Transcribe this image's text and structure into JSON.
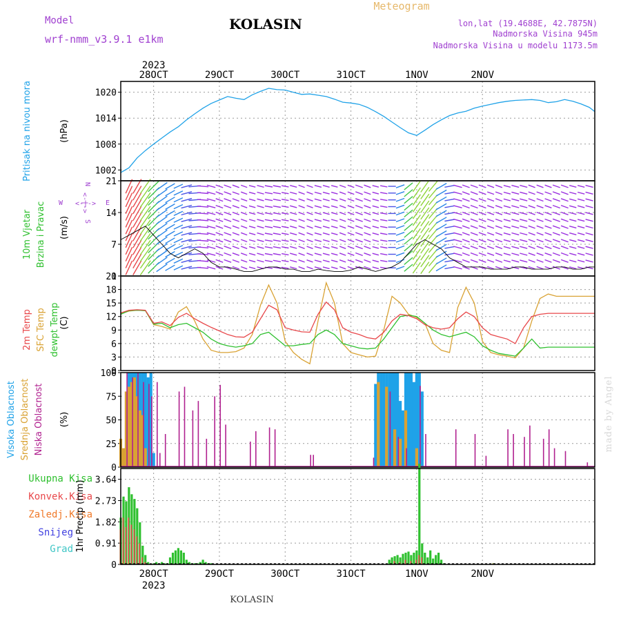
{
  "header": {
    "model_label": "Model",
    "model_name": "wrf-nmm_v3.9.1 e1km",
    "station": "KOLASIN",
    "product": "Meteogram",
    "lonlat": "lon,lat (19.4688E, 42.7875N)",
    "elevation": "Nadmorska Visina 945m",
    "model_elevation": "Nadmorska Visina u modelu 1173.5m"
  },
  "footer": {
    "station": "KOLASIN",
    "credit": "made by Angel"
  },
  "colors": {
    "pressure": "#1fa2e8",
    "temp2m": "#e8474a",
    "sfc": "#d9a233",
    "dew": "#2fc02f",
    "high_cloud": "#1fa2e8",
    "mid_cloud": "#d9a233",
    "low_cloud": "#b0208f",
    "total_precip": "#2fc02f",
    "conv": "#e8474a",
    "frz": "#f07a2a",
    "snow": "#4040e0",
    "hail": "#3fc6c6",
    "wind_labels": "#2fc02f",
    "purple": "#a040d0"
  },
  "chart_data": [
    {
      "type": "line",
      "panel": "pressure",
      "ylabel_colored": "Pritisak na nivou mora",
      "unit": "(hPa)",
      "yticks": [
        1002,
        1008,
        1014,
        1020
      ],
      "ylim": [
        999.5,
        1022.5
      ],
      "x_unit": "hours since 28OCT 00UTC",
      "x": [
        -12,
        -9,
        -6,
        -3,
        0,
        3,
        6,
        9,
        12,
        15,
        18,
        21,
        24,
        27,
        30,
        33,
        36,
        39,
        42,
        45,
        48,
        51,
        54,
        57,
        60,
        63,
        66,
        69,
        72,
        75,
        78,
        81,
        84,
        87,
        90,
        93,
        96,
        99,
        102,
        105,
        108,
        111,
        114,
        117,
        120,
        123,
        126,
        129,
        132,
        135,
        138,
        141,
        144,
        147,
        150,
        153,
        156,
        159,
        161
      ],
      "y": [
        1001.4,
        1002.5,
        1004.8,
        1006.5,
        1008.0,
        1009.4,
        1010.8,
        1012.0,
        1013.6,
        1015.0,
        1016.3,
        1017.4,
        1018.2,
        1019.0,
        1018.6,
        1018.3,
        1019.4,
        1020.2,
        1020.9,
        1020.6,
        1020.5,
        1020.0,
        1019.5,
        1019.6,
        1019.3,
        1019.0,
        1018.4,
        1017.7,
        1017.5,
        1017.2,
        1016.5,
        1015.5,
        1014.4,
        1013.1,
        1011.8,
        1010.6,
        1010.0,
        1011.2,
        1012.5,
        1013.6,
        1014.6,
        1015.2,
        1015.6,
        1016.3,
        1016.8,
        1017.2,
        1017.6,
        1017.9,
        1018.1,
        1018.2,
        1018.3,
        1018.1,
        1017.6,
        1017.8,
        1018.3,
        1017.9,
        1017.3,
        1016.5,
        1015.5
      ],
      "series": [
        {
          "name": "Pritisak na nivou mora"
        }
      ]
    },
    {
      "type": "scatter",
      "panel": "wind",
      "ylabel_colored_1": "10m Vjetar",
      "ylabel_colored_2": "Brzina i Pravac",
      "unit": "(m/s)",
      "yticks": [
        0,
        7,
        14,
        21
      ],
      "ylim": [
        0,
        21
      ],
      "compass": {
        "north": "N",
        "west": "W",
        "east": "E",
        "south": "S"
      },
      "x": [
        -12,
        -9,
        -6,
        -3,
        0,
        3,
        6,
        9,
        12,
        15,
        18,
        21,
        24,
        27,
        30,
        33,
        36,
        39,
        42,
        45,
        48,
        51,
        54,
        57,
        60,
        63,
        66,
        69,
        72,
        75,
        78,
        81,
        84,
        87,
        90,
        93,
        96,
        99,
        102,
        105,
        108,
        111,
        114,
        117,
        120,
        123,
        126,
        129,
        132,
        135,
        138,
        141,
        144,
        147,
        150,
        153,
        156,
        159,
        161
      ],
      "speed": [
        8,
        9,
        10,
        11,
        9,
        7,
        5,
        4,
        5,
        6,
        5,
        3,
        2,
        2,
        1.5,
        1,
        1,
        1.5,
        2,
        2,
        1.5,
        1.5,
        1,
        1,
        1.5,
        1.2,
        1,
        1,
        1.3,
        2,
        1.5,
        1,
        1.5,
        2,
        3,
        5,
        7,
        8,
        7,
        6,
        4,
        3,
        2,
        2,
        2,
        1.5,
        1.5,
        1.5,
        2,
        2,
        1.5,
        1.5,
        1.5,
        2,
        2,
        1.5,
        1.5,
        2,
        2
      ],
      "direction_deg": [
        200,
        205,
        210,
        215,
        225,
        235,
        240,
        245,
        255,
        265,
        275,
        285,
        290,
        290,
        290,
        290,
        285,
        285,
        280,
        280,
        280,
        285,
        290,
        290,
        285,
        285,
        285,
        290,
        290,
        290,
        290,
        285,
        280,
        270,
        250,
        230,
        215,
        215,
        220,
        240,
        260,
        285,
        290,
        290,
        290,
        290,
        290,
        285,
        285,
        285,
        290,
        290,
        290,
        290,
        290,
        285,
        285,
        285,
        285
      ]
    },
    {
      "type": "line",
      "panel": "temperature",
      "ylabel_colored": [
        "2m Temp",
        "SFC Temp",
        "dewpt Temp"
      ],
      "unit": "(C)",
      "yticks": [
        0,
        3,
        6,
        9,
        12,
        15,
        18,
        21
      ],
      "ylim": [
        0,
        21
      ],
      "x": [
        -12,
        -9,
        -6,
        -3,
        0,
        3,
        6,
        9,
        12,
        15,
        18,
        21,
        24,
        27,
        30,
        33,
        36,
        39,
        42,
        45,
        48,
        51,
        54,
        57,
        60,
        63,
        66,
        69,
        72,
        75,
        78,
        81,
        84,
        87,
        90,
        93,
        96,
        99,
        102,
        105,
        108,
        111,
        114,
        117,
        120,
        123,
        126,
        129,
        132,
        135,
        138,
        141,
        144,
        147,
        150,
        153,
        156,
        159,
        161
      ],
      "series": [
        {
          "name": "2m Temp",
          "values": [
            12.8,
            13.4,
            13.5,
            13.4,
            10.5,
            10.8,
            10.0,
            11.8,
            12.7,
            11.5,
            10.5,
            9.6,
            8.8,
            8.0,
            7.5,
            7.4,
            8.5,
            11.5,
            14.5,
            13.5,
            9.5,
            9.0,
            8.6,
            8.5,
            12.5,
            15.2,
            13.5,
            9.5,
            8.5,
            8.0,
            7.3,
            7.0,
            8.5,
            11.0,
            12.5,
            12.2,
            11.5,
            10.2,
            9.5,
            9.2,
            9.5,
            11.5,
            13.0,
            12.0,
            9.5,
            8.0,
            7.5,
            7.0,
            6.0,
            9.5,
            12.0,
            12.5,
            12.7,
            12.7,
            12.7,
            12.7,
            12.7,
            12.7,
            12.7
          ]
        },
        {
          "name": "SFC Temp",
          "values": [
            12.6,
            13.2,
            13.4,
            13.3,
            10.2,
            9.8,
            9.2,
            13.0,
            14.2,
            11.0,
            7.0,
            4.5,
            4.0,
            4.0,
            4.2,
            5.0,
            8.0,
            14.5,
            19.0,
            15.0,
            6.5,
            4.0,
            2.5,
            1.5,
            11.0,
            19.5,
            15.0,
            6.0,
            4.0,
            3.5,
            3.0,
            3.2,
            9.0,
            16.5,
            15.0,
            12.5,
            11.8,
            10.5,
            6.0,
            4.5,
            4.0,
            14.0,
            18.5,
            15.0,
            6.5,
            4.0,
            3.5,
            3.2,
            2.8,
            5.0,
            11.0,
            16.0,
            17.0,
            16.5,
            16.5,
            16.5,
            16.5,
            16.5,
            16.5
          ]
        },
        {
          "name": "dewpt Temp",
          "values": [
            12.5,
            13.3,
            13.4,
            13.3,
            10.3,
            10.5,
            9.5,
            10.2,
            10.5,
            9.5,
            8.5,
            7.0,
            6.0,
            5.5,
            5.2,
            5.5,
            6.0,
            8.0,
            8.5,
            7.0,
            5.5,
            5.5,
            5.8,
            6.0,
            8.0,
            9.0,
            8.0,
            6.0,
            5.5,
            5.0,
            4.8,
            5.0,
            7.0,
            9.5,
            12.0,
            12.3,
            12.0,
            10.5,
            9.0,
            8.0,
            7.5,
            8.0,
            8.5,
            7.5,
            5.5,
            4.5,
            3.8,
            3.5,
            3.2,
            5.0,
            7.0,
            5.0,
            5.2,
            5.2,
            5.2,
            5.2,
            5.2,
            5.2,
            5.2
          ]
        }
      ]
    },
    {
      "type": "bar",
      "panel": "clouds",
      "ylabel_colored": [
        "Visoka Oblacnost",
        "Srednja Oblacnost",
        "Niska Oblacnost"
      ],
      "unit": "(%)",
      "yticks": [
        0,
        25,
        50,
        75,
        100
      ],
      "ylim": [
        0,
        100
      ],
      "series": [
        {
          "name": "Visoka Oblacnost",
          "x": [
            -9,
            -8,
            -7,
            -6,
            -5,
            -4,
            -3,
            -2,
            -1,
            0,
            81,
            82,
            83,
            84,
            85,
            86,
            87,
            88,
            89,
            90,
            91,
            92,
            93,
            94,
            95,
            96,
            97,
            98
          ],
          "values": [
            100,
            100,
            100,
            100,
            100,
            100,
            100,
            95,
            100,
            15,
            88,
            100,
            100,
            100,
            100,
            100,
            100,
            100,
            100,
            70,
            60,
            100,
            100,
            100,
            90,
            100,
            100,
            80
          ]
        },
        {
          "name": "Srednja Oblacnost",
          "x": [
            -12,
            -11,
            -10,
            -9,
            -8,
            -7,
            -6,
            -5,
            -4,
            -3,
            82,
            85,
            88,
            90,
            92,
            96
          ],
          "values": [
            30,
            20,
            80,
            85,
            90,
            95,
            75,
            60,
            55,
            20,
            90,
            85,
            40,
            30,
            60,
            20
          ]
        },
        {
          "name": "Niska Oblacnost",
          "x": [
            -10,
            -8,
            -6,
            -4,
            -2,
            -1,
            1,
            2,
            4,
            9,
            11,
            14,
            16,
            19,
            22,
            24,
            26,
            35,
            37,
            42,
            44,
            57,
            58,
            80,
            86,
            89,
            92,
            97,
            99,
            110,
            117,
            121,
            129,
            131,
            135,
            137,
            142,
            144,
            146,
            150,
            158
          ],
          "values": [
            100,
            95,
            100,
            90,
            88,
            75,
            90,
            15,
            35,
            80,
            85,
            60,
            70,
            30,
            75,
            87,
            45,
            27,
            38,
            42,
            40,
            13,
            13,
            10,
            80,
            32,
            20,
            86,
            35,
            40,
            35,
            12,
            40,
            35,
            32,
            44,
            30,
            40,
            20,
            17,
            5
          ]
        }
      ]
    },
    {
      "type": "bar",
      "panel": "precipitation",
      "legend": [
        "Ukupna Kisa",
        "Konvek.Kisa",
        "Zaledj.Kisa",
        "Snijeg",
        "Grad"
      ],
      "ylabel": "1hr Precip (mm)",
      "yticks": [
        0,
        0.91,
        1.82,
        2.73,
        3.64
      ],
      "ylim": [
        0,
        4.1
      ],
      "series": [
        {
          "name": "Ukupna Kisa",
          "x": [
            -12,
            -11,
            -10,
            -9,
            -8,
            -7,
            -6,
            -5,
            -4,
            -3,
            -2,
            0,
            1,
            2,
            3,
            4,
            5,
            6,
            7,
            8,
            9,
            10,
            11,
            12,
            13,
            14,
            15,
            16,
            17,
            18,
            19,
            20,
            21,
            86,
            87,
            88,
            89,
            90,
            91,
            92,
            93,
            94,
            95,
            96,
            97,
            98,
            99,
            100,
            101,
            102,
            103,
            104,
            105,
            106,
            124
          ],
          "values": [
            2.0,
            2.9,
            2.7,
            3.3,
            3.0,
            2.8,
            2.4,
            1.8,
            0.8,
            0.4,
            0.1,
            0.05,
            0.1,
            0.05,
            0.1,
            0.05,
            0.05,
            0.3,
            0.5,
            0.6,
            0.7,
            0.6,
            0.5,
            0.2,
            0.1,
            0.05,
            0.05,
            0.05,
            0.1,
            0.2,
            0.1,
            0.05,
            0.05,
            0.2,
            0.3,
            0.35,
            0.4,
            0.3,
            0.45,
            0.5,
            0.55,
            0.4,
            0.5,
            0.6,
            4.3,
            0.9,
            0.5,
            0.3,
            0.6,
            0.25,
            0.4,
            0.5,
            0.2,
            0.05,
            0.05
          ]
        },
        {
          "name": "Konvek.Kisa",
          "x": [
            -12,
            -11,
            -10,
            -9,
            -8,
            -7,
            -6,
            -5,
            -4,
            -3,
            88,
            90,
            92,
            94,
            96,
            97,
            98
          ],
          "values": [
            1.5,
            2.0,
            1.6,
            2.0,
            1.7,
            1.5,
            1.2,
            0.9,
            0.3,
            0.1,
            0.15,
            0.1,
            0.2,
            0.15,
            0.2,
            0.4,
            0.3
          ]
        },
        {
          "name": "Zaledj.Kisa",
          "x": [
            -11,
            -9,
            124
          ],
          "values": [
            0.1,
            0.1,
            0.04
          ]
        }
      ]
    },
    {
      "type": "table",
      "panel": "time_axis",
      "year": "2023",
      "date_labels": [
        "28OCT",
        "29OCT",
        "30OCT",
        "31OCT",
        "1NOV",
        "2NOV"
      ],
      "date_hours": [
        0,
        24,
        48,
        72,
        96,
        120
      ],
      "xlim": [
        -12,
        161
      ]
    }
  ]
}
